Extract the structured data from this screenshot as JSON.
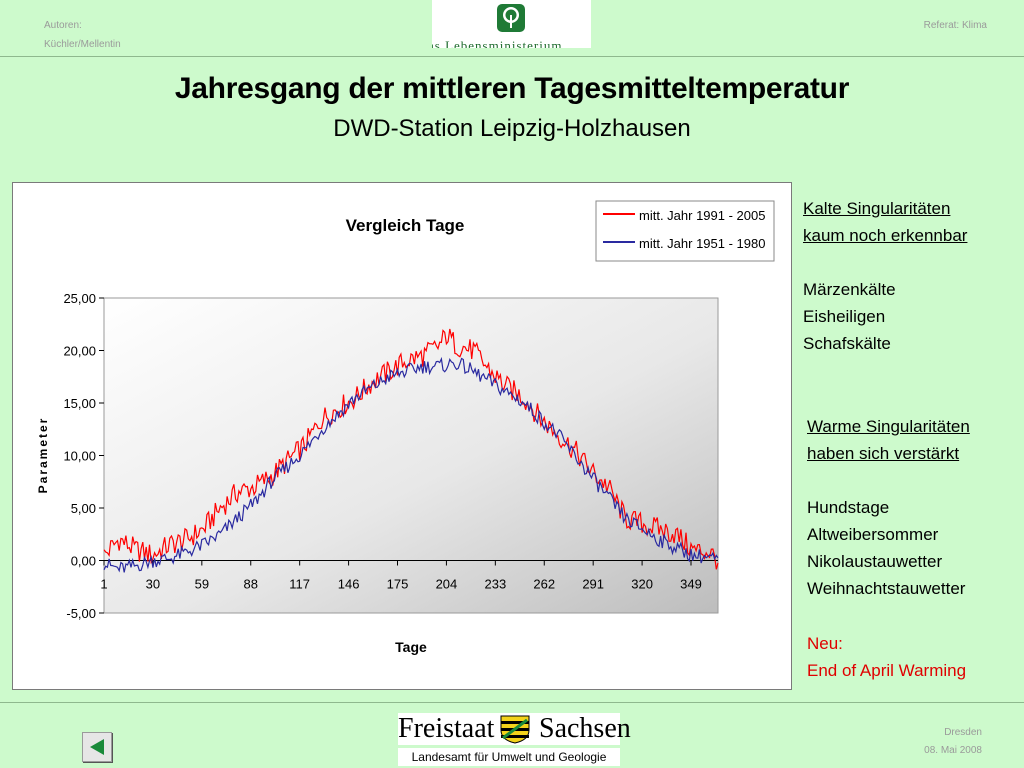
{
  "header": {
    "authors_label": "Autoren:",
    "authors_names": "Küchler/Mellentin",
    "referat": "Referat: Klima",
    "logo_text": "as Lebensministerium"
  },
  "title": "Jahresgang der mittleren Tagesmitteltemperatur",
  "subtitle": "DWD-Station Leipzig-Holzhausen",
  "sidebar": {
    "cold_heading_1": "Kalte Singularitäten",
    "cold_heading_2": "kaum noch erkennbar",
    "cold_items": [
      "Märzenkälte",
      "Eisheiligen",
      "Schafskälte"
    ],
    "warm_heading_1": "Warme Singularitäten",
    "warm_heading_2": "haben sich verstärkt",
    "warm_items": [
      "Hundstage",
      "Altweibersommer",
      "Nikolaustauwetter",
      "Weihnachtstauwetter"
    ],
    "new_label": "Neu:",
    "new_item": "End of April Warming"
  },
  "footer": {
    "state_left": "Freistaat",
    "state_right": "Sachsen",
    "agency": "Landesamt für Umwelt und Geologie",
    "city": "Dresden",
    "date": "08. Mai 2008"
  },
  "colors": {
    "series_recent": "#ff0000",
    "series_old": "#2a2aa0",
    "background": "#cdfacc"
  },
  "chart_data": {
    "type": "line",
    "title": "Vergleich Tage",
    "xlabel": "Tage",
    "ylabel": "Parameter",
    "xlim": [
      1,
      365
    ],
    "ylim": [
      -5,
      25
    ],
    "x_ticks": [
      1,
      30,
      59,
      88,
      117,
      146,
      175,
      204,
      233,
      262,
      291,
      320,
      349
    ],
    "y_ticks": [
      "-5,00",
      "0,00",
      "5,00",
      "10,00",
      "15,00",
      "20,00",
      "25,00"
    ],
    "legend_position": "top-right",
    "series": [
      {
        "name": "mitt. Jahr 1991 - 2005",
        "color": "#ff0000",
        "days": [
          1,
          10,
          20,
          30,
          40,
          50,
          60,
          70,
          80,
          90,
          100,
          110,
          120,
          130,
          140,
          150,
          160,
          170,
          180,
          190,
          200,
          204,
          210,
          220,
          230,
          240,
          250,
          260,
          270,
          280,
          290,
          300,
          310,
          320,
          330,
          340,
          350,
          360,
          365
        ],
        "values": [
          0.5,
          2.0,
          1.0,
          0.5,
          1.5,
          2.0,
          3.0,
          5.0,
          6.5,
          7.0,
          8.0,
          9.5,
          11.0,
          13.5,
          14.5,
          15.5,
          17.0,
          18.0,
          19.0,
          19.5,
          20.5,
          21.5,
          20.5,
          20.0,
          18.0,
          16.5,
          15.5,
          13.5,
          12.0,
          10.5,
          8.5,
          7.0,
          4.0,
          3.5,
          3.0,
          2.5,
          1.0,
          0.8,
          0.0
        ]
      },
      {
        "name": "mitt. Jahr 1951 - 1980",
        "color": "#2a2aa0",
        "days": [
          1,
          10,
          20,
          30,
          40,
          50,
          60,
          70,
          80,
          90,
          100,
          110,
          120,
          130,
          140,
          150,
          160,
          170,
          180,
          190,
          200,
          210,
          220,
          230,
          240,
          250,
          260,
          270,
          280,
          290,
          300,
          310,
          320,
          330,
          340,
          350,
          360,
          365
        ],
        "values": [
          -0.3,
          -0.8,
          -0.5,
          0.0,
          0.2,
          0.8,
          1.5,
          2.5,
          4.0,
          5.5,
          7.5,
          9.0,
          10.5,
          12.5,
          14.0,
          15.5,
          16.5,
          17.5,
          18.0,
          18.5,
          18.5,
          18.8,
          18.0,
          17.0,
          16.0,
          15.0,
          13.5,
          12.0,
          10.0,
          8.0,
          6.0,
          4.0,
          3.0,
          2.0,
          1.2,
          0.5,
          0.3,
          0.0
        ]
      }
    ]
  }
}
